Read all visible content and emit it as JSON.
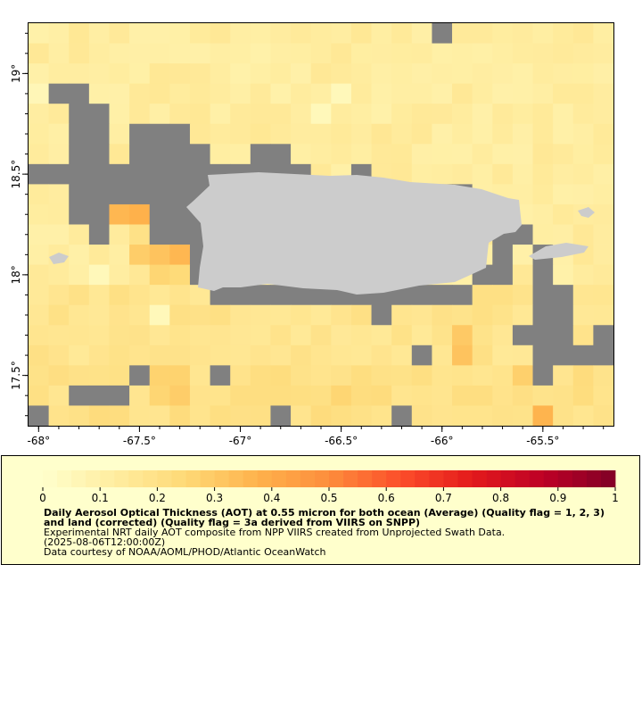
{
  "map": {
    "x_ticks": [
      "-68°",
      "-67.5°",
      "-67°",
      "-66.5°",
      "-66°",
      "-65.5°"
    ],
    "y_ticks": [
      "19°",
      "18.5°",
      "18°",
      "17.5°"
    ],
    "lon_range": [
      -68.05,
      -65.15
    ],
    "lat_range": [
      17.25,
      19.25
    ]
  },
  "colorbar": {
    "tick_labels": [
      "0",
      "0.1",
      "0.2",
      "0.3",
      "0.4",
      "0.5",
      "0.6",
      "0.7",
      "0.8",
      "0.9",
      "1"
    ],
    "range": [
      0,
      1
    ],
    "colors": [
      "#ffffcc",
      "#ffeda0",
      "#fed976",
      "#feb24c",
      "#fd8d3c",
      "#fc4e2a",
      "#e31a1c",
      "#bd0026",
      "#800026"
    ]
  },
  "legend": {
    "title": "Daily Aerosol Optical Thickness (AOT) at 0.55 micron for both ocean (Average) (Quality flag = 1, 2, 3) and land (corrected) (Quality flag = 3a derived from VIIRS on SNPP)",
    "line1": "Experimental NRT daily AOT composite from NPP VIIRS created from Unprojected Swath Data.",
    "line2": "(2025-08-06T12:00:00Z)",
    "line3": "Data courtesy of NOAA/AOML/PHOD/Atlantic OceanWatch"
  },
  "colors": {
    "nodata": "#808080",
    "land": "#cccccc",
    "panel_bg": "#ffffcc"
  }
}
